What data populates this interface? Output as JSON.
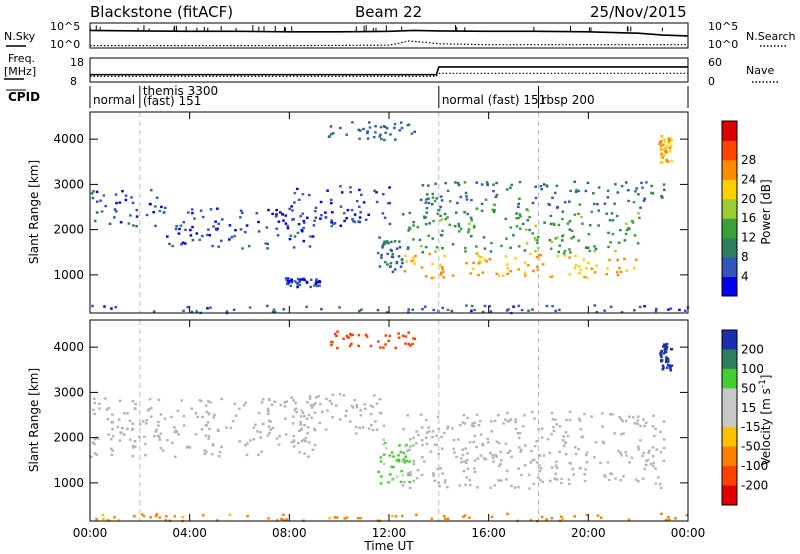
{
  "header": {
    "station": "Blackstone (fitACF)",
    "beam": "Beam 22",
    "date": "25/Nov/2015"
  },
  "side_labels": {
    "nsky": "N.Sky",
    "nsearch": "N.Search",
    "freq": "Freq.",
    "freq_unit": "[MHz]",
    "nave": "Nave",
    "cpid": "CPID"
  },
  "noise_axis": {
    "left_top": "10^5",
    "left_bottom": "10^0",
    "right_top": "10^5",
    "right_bottom": "10^0"
  },
  "freq_axis": {
    "left_ticks": [
      "18",
      "8"
    ],
    "right_ticks": [
      "60",
      "0"
    ]
  },
  "cpid_segments": [
    {
      "start_h": 0.0,
      "end_h": 2.0,
      "label": "normal"
    },
    {
      "start_h": 2.0,
      "end_h": 14.0,
      "label": "themis 3300",
      "label2": "(fast) 151"
    },
    {
      "start_h": 14.0,
      "end_h": 18.0,
      "label": "normal (fast) 151"
    },
    {
      "start_h": 18.0,
      "end_h": 24.0,
      "label": "rbsp 200"
    }
  ],
  "colors": {
    "power_scale": [
      "#0000ee",
      "#3355bb",
      "#2e7d5e",
      "#3aa03a",
      "#9acd32",
      "#ffd000",
      "#ff8c00",
      "#ff4400",
      "#dd0000"
    ],
    "velocity_scale": [
      "#1a2fb0",
      "#2e7d5e",
      "#44cc33",
      "#c8c8c8",
      "#c8c8c8",
      "#ffc000",
      "#ff8000",
      "#ff4000",
      "#e00000"
    ],
    "ground_scatter": "#b4b4b4"
  },
  "chart_data": [
    {
      "type": "line",
      "title": "N.Sky / N.Search",
      "x": [
        "00:00",
        "04:00",
        "08:00",
        "12:00",
        "16:00",
        "20:00",
        "00:00"
      ],
      "ylim": [
        "10^0",
        "10^5"
      ],
      "series": [
        {
          "name": "N.Sky",
          "hours": [
            0,
            2,
            4,
            6,
            8,
            10,
            12,
            13,
            14,
            16,
            18,
            20,
            22,
            23,
            24
          ],
          "values_log10": [
            3.6,
            3.5,
            3.4,
            3.4,
            3.3,
            3.3,
            3.4,
            3.6,
            3.5,
            3.4,
            3.4,
            3.3,
            3.0,
            2.6,
            2.4
          ]
        },
        {
          "name": "N.Search",
          "hours": [
            0,
            4,
            8,
            12,
            12.8,
            13.5,
            14,
            16,
            20,
            24
          ],
          "values_log10": [
            0.3,
            0.3,
            0.3,
            0.4,
            1.3,
            1.0,
            0.7,
            0.5,
            0.5,
            0.5
          ]
        }
      ]
    },
    {
      "type": "line",
      "title": "Freq. / Nave",
      "ylabel_left": "Freq. [MHz]",
      "ylabel_right": "Nave",
      "ylim_left": [
        8,
        18
      ],
      "ylim_right": [
        0,
        60
      ],
      "series": [
        {
          "name": "Freq.",
          "hours": [
            0,
            13.9,
            14.0,
            24
          ],
          "values": [
            10.9,
            10.9,
            14.4,
            14.4
          ]
        },
        {
          "name": "Nave",
          "hours": [
            0,
            13.9,
            14.0,
            24
          ],
          "values": [
            13,
            13,
            21,
            21
          ]
        }
      ]
    },
    {
      "type": "heatmap",
      "title": "Power",
      "xlabel": "",
      "ylabel": "Slant Range [km]",
      "xlim_hours": [
        0,
        24
      ],
      "ylim": [
        180,
        4600
      ],
      "x_ticks": [
        "00:00",
        "04:00",
        "08:00",
        "12:00",
        "16:00",
        "20:00",
        "00:00"
      ],
      "y_ticks": [
        1000,
        2000,
        3000,
        4000
      ],
      "colorbar": {
        "label": "Power [dB]",
        "ticks": [
          4,
          8,
          12,
          16,
          20,
          24,
          28
        ],
        "range": [
          0,
          32
        ]
      },
      "regions": [
        {
          "h0": 0.0,
          "h1": 3.0,
          "r0": 2100,
          "r1": 2900,
          "value": 6
        },
        {
          "h0": 3.0,
          "h1": 9.0,
          "r0": 1600,
          "r1": 2500,
          "value": 5
        },
        {
          "h0": 8.0,
          "h1": 12.0,
          "r0": 2100,
          "r1": 3000,
          "value": 5
        },
        {
          "h0": 7.8,
          "h1": 9.2,
          "r0": 750,
          "r1": 950,
          "value": 5
        },
        {
          "h0": 11.5,
          "h1": 12.8,
          "r0": 1000,
          "r1": 2000,
          "value": 8
        },
        {
          "h0": 12.5,
          "h1": 22.0,
          "r0": 950,
          "r1": 1500,
          "value": 24
        },
        {
          "h0": 12.5,
          "h1": 22.0,
          "r0": 1500,
          "r1": 2500,
          "value": 13
        },
        {
          "h0": 13.0,
          "h1": 23.0,
          "r0": 2500,
          "r1": 3100,
          "value": 9
        },
        {
          "h0": 0.0,
          "h1": 24.0,
          "r0": 180,
          "r1": 350,
          "value": 6
        },
        {
          "h0": 9.5,
          "h1": 13.0,
          "r0": 4000,
          "r1": 4400,
          "value": 8
        },
        {
          "h0": 22.8,
          "h1": 23.3,
          "r0": 3500,
          "r1": 4100,
          "value": 24
        }
      ]
    },
    {
      "type": "heatmap",
      "title": "Velocity",
      "xlabel": "Time UT",
      "ylabel": "Slant Range [km]",
      "xlim_hours": [
        0,
        24
      ],
      "ylim": [
        180,
        4600
      ],
      "x_ticks": [
        "00:00",
        "04:00",
        "08:00",
        "12:00",
        "16:00",
        "20:00",
        "00:00"
      ],
      "y_ticks": [
        1000,
        2000,
        3000,
        4000
      ],
      "colorbar": {
        "label": "Velocity [m s^-1]",
        "ticks": [
          200,
          100,
          50,
          15,
          -15,
          -50,
          -100,
          -200
        ]
      },
      "regions": [
        {
          "h0": 0.0,
          "h1": 9.0,
          "r0": 1600,
          "r1": 2900,
          "value": 0,
          "ground_scatter": true
        },
        {
          "h0": 8.0,
          "h1": 12.0,
          "r0": 2100,
          "r1": 3000,
          "value": 0,
          "ground_scatter": true
        },
        {
          "h0": 11.5,
          "h1": 12.8,
          "r0": 1000,
          "r1": 2000,
          "value": 40
        },
        {
          "h0": 12.5,
          "h1": 23.0,
          "r0": 900,
          "r1": 2600,
          "value": 0,
          "ground_scatter": true
        },
        {
          "h0": 0.0,
          "h1": 24.0,
          "r0": 180,
          "r1": 350,
          "value": -60
        },
        {
          "h0": 9.5,
          "h1": 13.0,
          "r0": 4000,
          "r1": 4400,
          "value": -120
        },
        {
          "h0": 22.8,
          "h1": 23.3,
          "r0": 3500,
          "r1": 4100,
          "value": 220
        }
      ]
    }
  ]
}
